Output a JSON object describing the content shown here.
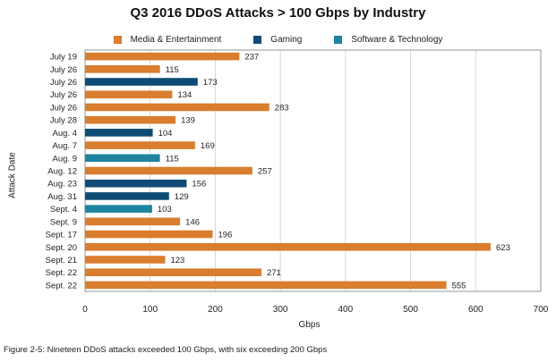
{
  "chart_data": {
    "type": "bar",
    "orientation": "horizontal",
    "title": "Q3 2016 DDoS Attacks > 100 Gbps by Industry",
    "xlabel": "Gbps",
    "ylabel": "Attack Date",
    "xlim": [
      0,
      700
    ],
    "xticks": [
      "0",
      "100",
      "200",
      "300",
      "400",
      "500",
      "600",
      "700"
    ],
    "grid": "vertical",
    "legend_position": "top",
    "legend": [
      {
        "name": "Media & Entertainment",
        "color": "#d97d2e"
      },
      {
        "name": "Gaming",
        "color": "#0f4c75"
      },
      {
        "name": "Software & Technology",
        "color": "#1f84a0"
      }
    ],
    "bars": [
      {
        "label": "July 19",
        "value": 237,
        "value_label": "237",
        "series": 0
      },
      {
        "label": "July 26",
        "value": 115,
        "value_label": "115",
        "series": 0
      },
      {
        "label": "July 26",
        "value": 173,
        "value_label": "173",
        "series": 1
      },
      {
        "label": "July 26",
        "value": 134,
        "value_label": "134",
        "series": 0
      },
      {
        "label": "July 26",
        "value": 283,
        "value_label": "283",
        "series": 0
      },
      {
        "label": "July 28",
        "value": 139,
        "value_label": "139",
        "series": 0
      },
      {
        "label": "Aug. 4",
        "value": 104,
        "value_label": "104",
        "series": 1
      },
      {
        "label": "Aug. 7",
        "value": 169,
        "value_label": "169",
        "series": 0
      },
      {
        "label": "Aug. 9",
        "value": 115,
        "value_label": "115",
        "series": 2
      },
      {
        "label": "Aug. 12",
        "value": 257,
        "value_label": "257",
        "series": 0
      },
      {
        "label": "Aug. 23",
        "value": 156,
        "value_label": "156",
        "series": 1
      },
      {
        "label": "Aug. 31",
        "value": 129,
        "value_label": "129",
        "series": 1
      },
      {
        "label": "Sept. 4",
        "value": 103,
        "value_label": "103",
        "series": 2
      },
      {
        "label": "Sept. 9",
        "value": 146,
        "value_label": "146",
        "series": 0
      },
      {
        "label": "Sept. 17",
        "value": 196,
        "value_label": "196",
        "series": 0
      },
      {
        "label": "Sept. 20",
        "value": 623,
        "value_label": "623",
        "series": 0
      },
      {
        "label": "Sept. 21",
        "value": 123,
        "value_label": "123",
        "series": 0
      },
      {
        "label": "Sept. 22",
        "value": 271,
        "value_label": "271",
        "series": 0
      },
      {
        "label": "Sept. 22",
        "value": 555,
        "value_label": "555",
        "series": 0
      }
    ]
  },
  "caption": "Figure 2-5: Nineteen DDoS attacks exceeded 100 Gbps, with six exceeding 200 Gbps"
}
